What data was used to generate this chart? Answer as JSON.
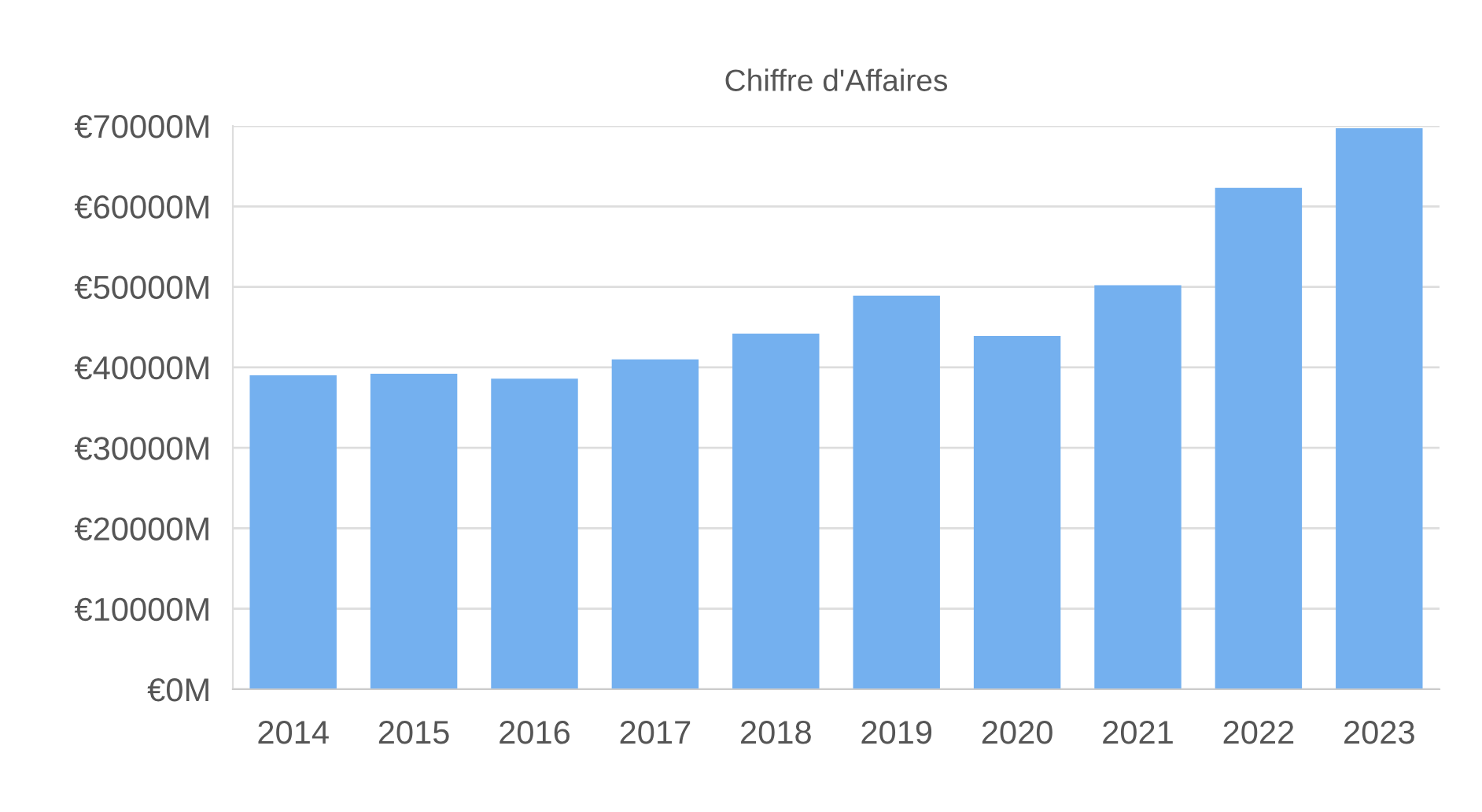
{
  "chart_data": {
    "type": "bar",
    "title": "Chiffre d'Affaires",
    "categories": [
      "2014",
      "2015",
      "2016",
      "2017",
      "2018",
      "2019",
      "2020",
      "2021",
      "2022",
      "2023"
    ],
    "values": [
      39000,
      39200,
      38600,
      41000,
      44200,
      48900,
      43900,
      50200,
      62300,
      69700
    ],
    "color": "#74b0ef",
    "ylim": [
      0,
      70000
    ],
    "yticks": [
      {
        "value": 0,
        "label": "€0M"
      },
      {
        "value": 10000,
        "label": "€10000M"
      },
      {
        "value": 20000,
        "label": "€20000M"
      },
      {
        "value": 30000,
        "label": "€30000M"
      },
      {
        "value": 40000,
        "label": "€40000M"
      },
      {
        "value": 50000,
        "label": "€50000M"
      },
      {
        "value": 60000,
        "label": "€60000M"
      },
      {
        "value": 70000,
        "label": "€70000M"
      }
    ],
    "grid": true
  }
}
